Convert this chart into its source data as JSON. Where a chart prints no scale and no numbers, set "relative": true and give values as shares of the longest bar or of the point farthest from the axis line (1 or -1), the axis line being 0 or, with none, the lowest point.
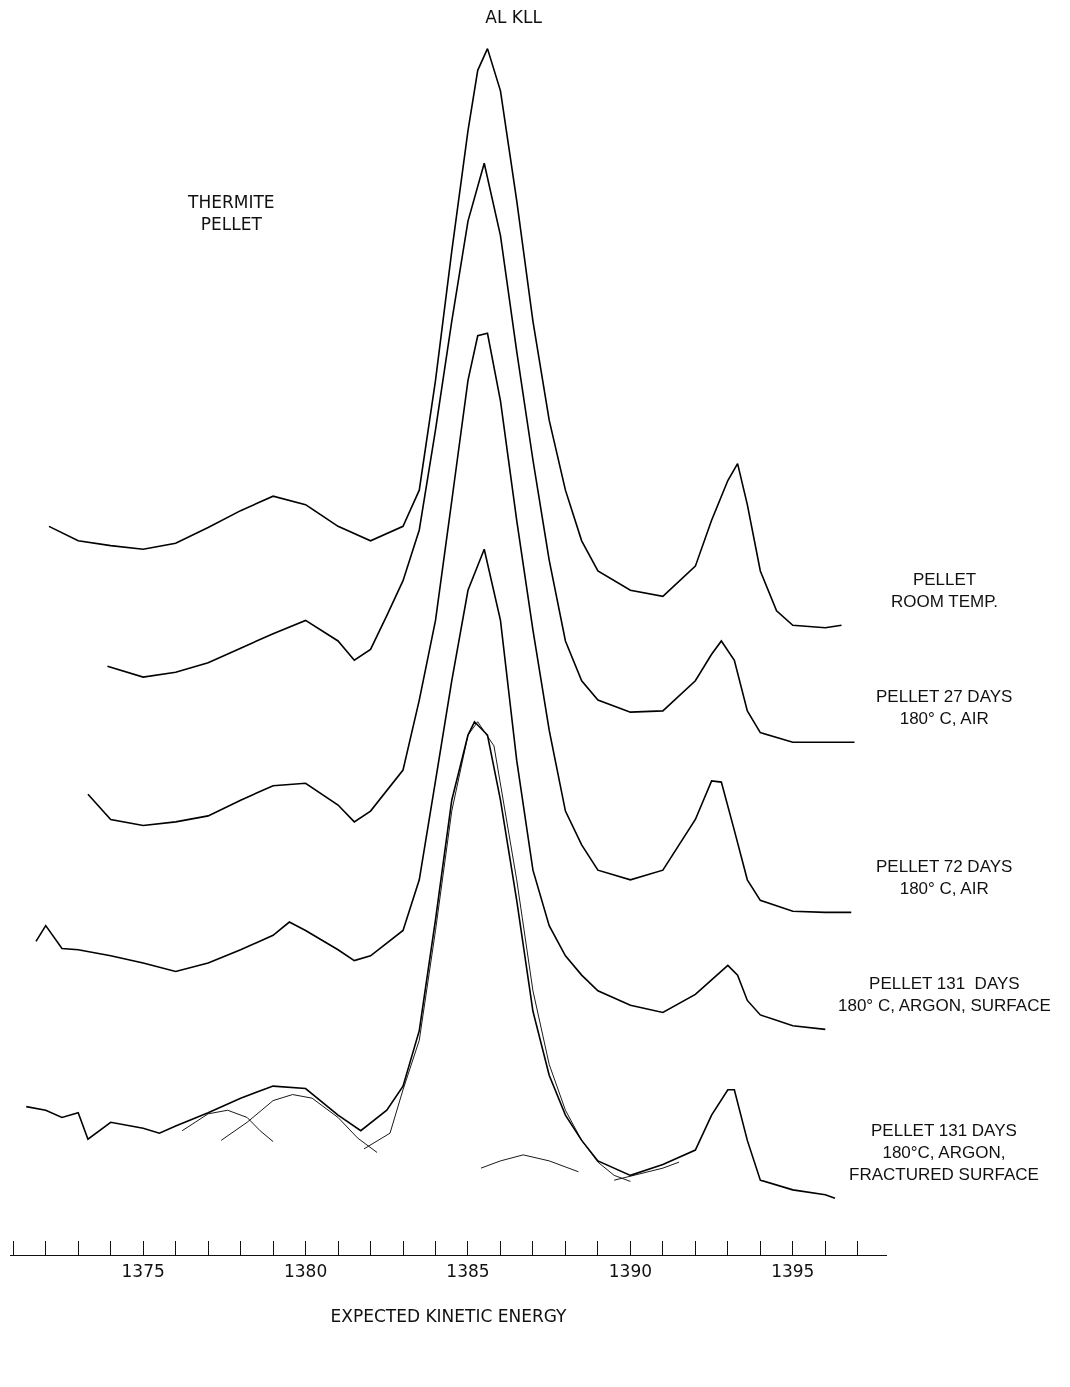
{
  "chart_data": {
    "type": "line",
    "title": "AL KLL",
    "xlabel": "EXPECTED KINETIC ENERGY",
    "relative": true,
    "legend": false,
    "marker": "none",
    "line_style": "solid",
    "annotations": [
      "THERMITE\nPELLET"
    ],
    "xlim": [
      1370.9,
      1397.9
    ],
    "xticks": [
      {
        "value": 1371,
        "label": null
      },
      {
        "value": 1372,
        "label": null
      },
      {
        "value": 1373,
        "label": null
      },
      {
        "value": 1374,
        "label": null
      },
      1375,
      {
        "value": 1376,
        "label": null
      },
      {
        "value": 1377,
        "label": null
      },
      {
        "value": 1378,
        "label": null
      },
      {
        "value": 1379,
        "label": null
      },
      1380,
      {
        "value": 1381,
        "label": null
      },
      {
        "value": 1382,
        "label": null
      },
      {
        "value": 1383,
        "label": null
      },
      {
        "value": 1384,
        "label": null
      },
      1385,
      {
        "value": 1386,
        "label": null
      },
      {
        "value": 1387,
        "label": null
      },
      {
        "value": 1388,
        "label": null
      },
      {
        "value": 1389,
        "label": null
      },
      1390,
      {
        "value": 1391,
        "label": null
      },
      {
        "value": 1392,
        "label": null
      },
      {
        "value": 1393,
        "label": null
      },
      {
        "value": 1394,
        "label": null
      },
      1395,
      {
        "value": 1396,
        "label": null
      },
      {
        "value": 1397,
        "label": null
      }
    ],
    "series": [
      {
        "name": "PELLET\nROOM TEMP.",
        "color": "#000000",
        "x": [
          1372.1,
          1373,
          1374,
          1375,
          1376,
          1377,
          1378,
          1379,
          1380,
          1381,
          1382,
          1383,
          1383.5,
          1384,
          1384.5,
          1385,
          1385.3,
          1385.6,
          1386,
          1386.5,
          1387,
          1387.5,
          1388,
          1388.5,
          1389,
          1390,
          1391,
          1392,
          1392.5,
          1393,
          1393.3,
          1393.6,
          1394,
          1394.5,
          1395,
          1396,
          1396.5
        ],
        "values": [
          0.604,
          0.592,
          0.588,
          0.585,
          0.59,
          0.603,
          0.617,
          0.629,
          0.622,
          0.604,
          0.592,
          0.604,
          0.634,
          0.725,
          0.832,
          0.932,
          0.982,
          1.0,
          0.965,
          0.874,
          0.774,
          0.692,
          0.634,
          0.592,
          0.567,
          0.551,
          0.546,
          0.571,
          0.609,
          0.642,
          0.656,
          0.622,
          0.567,
          0.534,
          0.522,
          0.52,
          0.522
        ]
      },
      {
        "name": "PELLET 27 DAYS\n180° C, AIR",
        "color": "#000000",
        "x": [
          1373.9,
          1375,
          1376,
          1377,
          1378,
          1379,
          1380,
          1381,
          1381.5,
          1382,
          1382.5,
          1383,
          1383.5,
          1384,
          1384.5,
          1385,
          1385.5,
          1386,
          1386.5,
          1387,
          1387.5,
          1388,
          1388.5,
          1389,
          1390,
          1391,
          1392,
          1392.5,
          1392.8,
          1393.2,
          1393.6,
          1394,
          1395,
          1396,
          1396.9
        ],
        "values": [
          0.488,
          0.479,
          0.483,
          0.491,
          0.503,
          0.515,
          0.526,
          0.509,
          0.493,
          0.502,
          0.53,
          0.559,
          0.601,
          0.684,
          0.774,
          0.857,
          0.905,
          0.845,
          0.749,
          0.659,
          0.576,
          0.509,
          0.476,
          0.46,
          0.45,
          0.451,
          0.476,
          0.498,
          0.509,
          0.493,
          0.451,
          0.433,
          0.425,
          0.425,
          0.425
        ]
      },
      {
        "name": "PELLET 72 DAYS\n180° C, AIR",
        "color": "#000000",
        "x": [
          1373.3,
          1374,
          1375,
          1376,
          1377,
          1378,
          1379,
          1380,
          1381,
          1381.5,
          1382,
          1383,
          1383.5,
          1384,
          1384.5,
          1385,
          1385.3,
          1385.6,
          1386,
          1386.5,
          1387,
          1387.5,
          1388,
          1388.5,
          1389,
          1390,
          1391,
          1392,
          1392.5,
          1392.8,
          1393.2,
          1393.6,
          1394,
          1395,
          1396,
          1396.8
        ],
        "values": [
          0.382,
          0.361,
          0.356,
          0.359,
          0.364,
          0.377,
          0.389,
          0.391,
          0.373,
          0.359,
          0.368,
          0.402,
          0.46,
          0.526,
          0.625,
          0.725,
          0.762,
          0.764,
          0.708,
          0.609,
          0.518,
          0.435,
          0.368,
          0.34,
          0.319,
          0.311,
          0.319,
          0.361,
          0.393,
          0.392,
          0.352,
          0.311,
          0.294,
          0.285,
          0.284,
          0.284
        ]
      },
      {
        "name": "PELLET 131  DAYS\n180° C, ARGON, SURFACE",
        "color": "#000000",
        "x": [
          1371.7,
          1372,
          1372.5,
          1373,
          1374,
          1375,
          1376,
          1377,
          1378,
          1379,
          1379.5,
          1380,
          1381,
          1381.5,
          1382,
          1383,
          1383.5,
          1384,
          1384.5,
          1385,
          1385.5,
          1386,
          1386.5,
          1387,
          1387.5,
          1388,
          1388.5,
          1389,
          1390,
          1391,
          1392,
          1392.5,
          1393,
          1393.3,
          1393.6,
          1394,
          1395,
          1396
        ],
        "values": [
          0.26,
          0.273,
          0.254,
          0.253,
          0.248,
          0.242,
          0.235,
          0.242,
          0.253,
          0.265,
          0.276,
          0.269,
          0.253,
          0.244,
          0.248,
          0.269,
          0.311,
          0.393,
          0.476,
          0.551,
          0.585,
          0.526,
          0.41,
          0.319,
          0.273,
          0.248,
          0.232,
          0.219,
          0.207,
          0.201,
          0.216,
          0.228,
          0.24,
          0.232,
          0.211,
          0.199,
          0.19,
          0.187
        ]
      },
      {
        "name": "PELLET 131 DAYS\n180°C, ARGON,\nFRACTURED SURFACE",
        "color": "#000000",
        "x": [
          1371.4,
          1372,
          1372.5,
          1373,
          1373.3,
          1374,
          1375,
          1375.5,
          1376,
          1377,
          1378,
          1379,
          1380,
          1381,
          1381.7,
          1382.5,
          1383,
          1383.5,
          1384,
          1384.5,
          1385,
          1385.2,
          1385.6,
          1386,
          1386.5,
          1387,
          1387.5,
          1388,
          1388.5,
          1389,
          1390,
          1391,
          1392,
          1392.5,
          1393,
          1393.2,
          1393.6,
          1394,
          1395,
          1396,
          1396.3
        ],
        "values": [
          0.123,
          0.12,
          0.114,
          0.118,
          0.096,
          0.11,
          0.105,
          0.101,
          0.107,
          0.118,
          0.13,
          0.14,
          0.138,
          0.116,
          0.103,
          0.12,
          0.14,
          0.186,
          0.278,
          0.377,
          0.431,
          0.442,
          0.431,
          0.377,
          0.294,
          0.202,
          0.149,
          0.116,
          0.095,
          0.078,
          0.066,
          0.075,
          0.087,
          0.116,
          0.137,
          0.137,
          0.095,
          0.062,
          0.054,
          0.05,
          0.047
        ]
      },
      {
        "color": "#000000",
        "x": [
          1376.2,
          1377.0,
          1377.6,
          1378.2,
          1378.6,
          1379.0
        ],
        "values": [
          0.103,
          0.117,
          0.12,
          0.114,
          0.103,
          0.094
        ]
      },
      {
        "color": "#000000",
        "x": [
          1377.4,
          1378.2,
          1379,
          1379.6,
          1380.2,
          1381,
          1381.6,
          1382.2
        ],
        "values": [
          0.095,
          0.11,
          0.128,
          0.133,
          0.13,
          0.114,
          0.097,
          0.085
        ]
      },
      {
        "color": "#000000",
        "x": [
          1381.8,
          1382.6,
          1383,
          1383.5,
          1384,
          1384.5,
          1385,
          1385.3,
          1385.8,
          1386.5,
          1387,
          1387.5,
          1388,
          1388.5,
          1389,
          1389.5,
          1390
        ],
        "values": [
          0.088,
          0.101,
          0.137,
          0.178,
          0.269,
          0.368,
          0.431,
          0.442,
          0.422,
          0.311,
          0.219,
          0.158,
          0.12,
          0.095,
          0.077,
          0.066,
          0.061
        ]
      },
      {
        "color": "#000000",
        "x": [
          1385.4,
          1386,
          1386.7,
          1387.5,
          1388.4
        ],
        "values": [
          0.072,
          0.078,
          0.083,
          0.078,
          0.069
        ]
      },
      {
        "color": "#000000",
        "x": [
          1389.5,
          1391,
          1391.5
        ],
        "values": [
          0.062,
          0.072,
          0.077
        ]
      }
    ]
  }
}
